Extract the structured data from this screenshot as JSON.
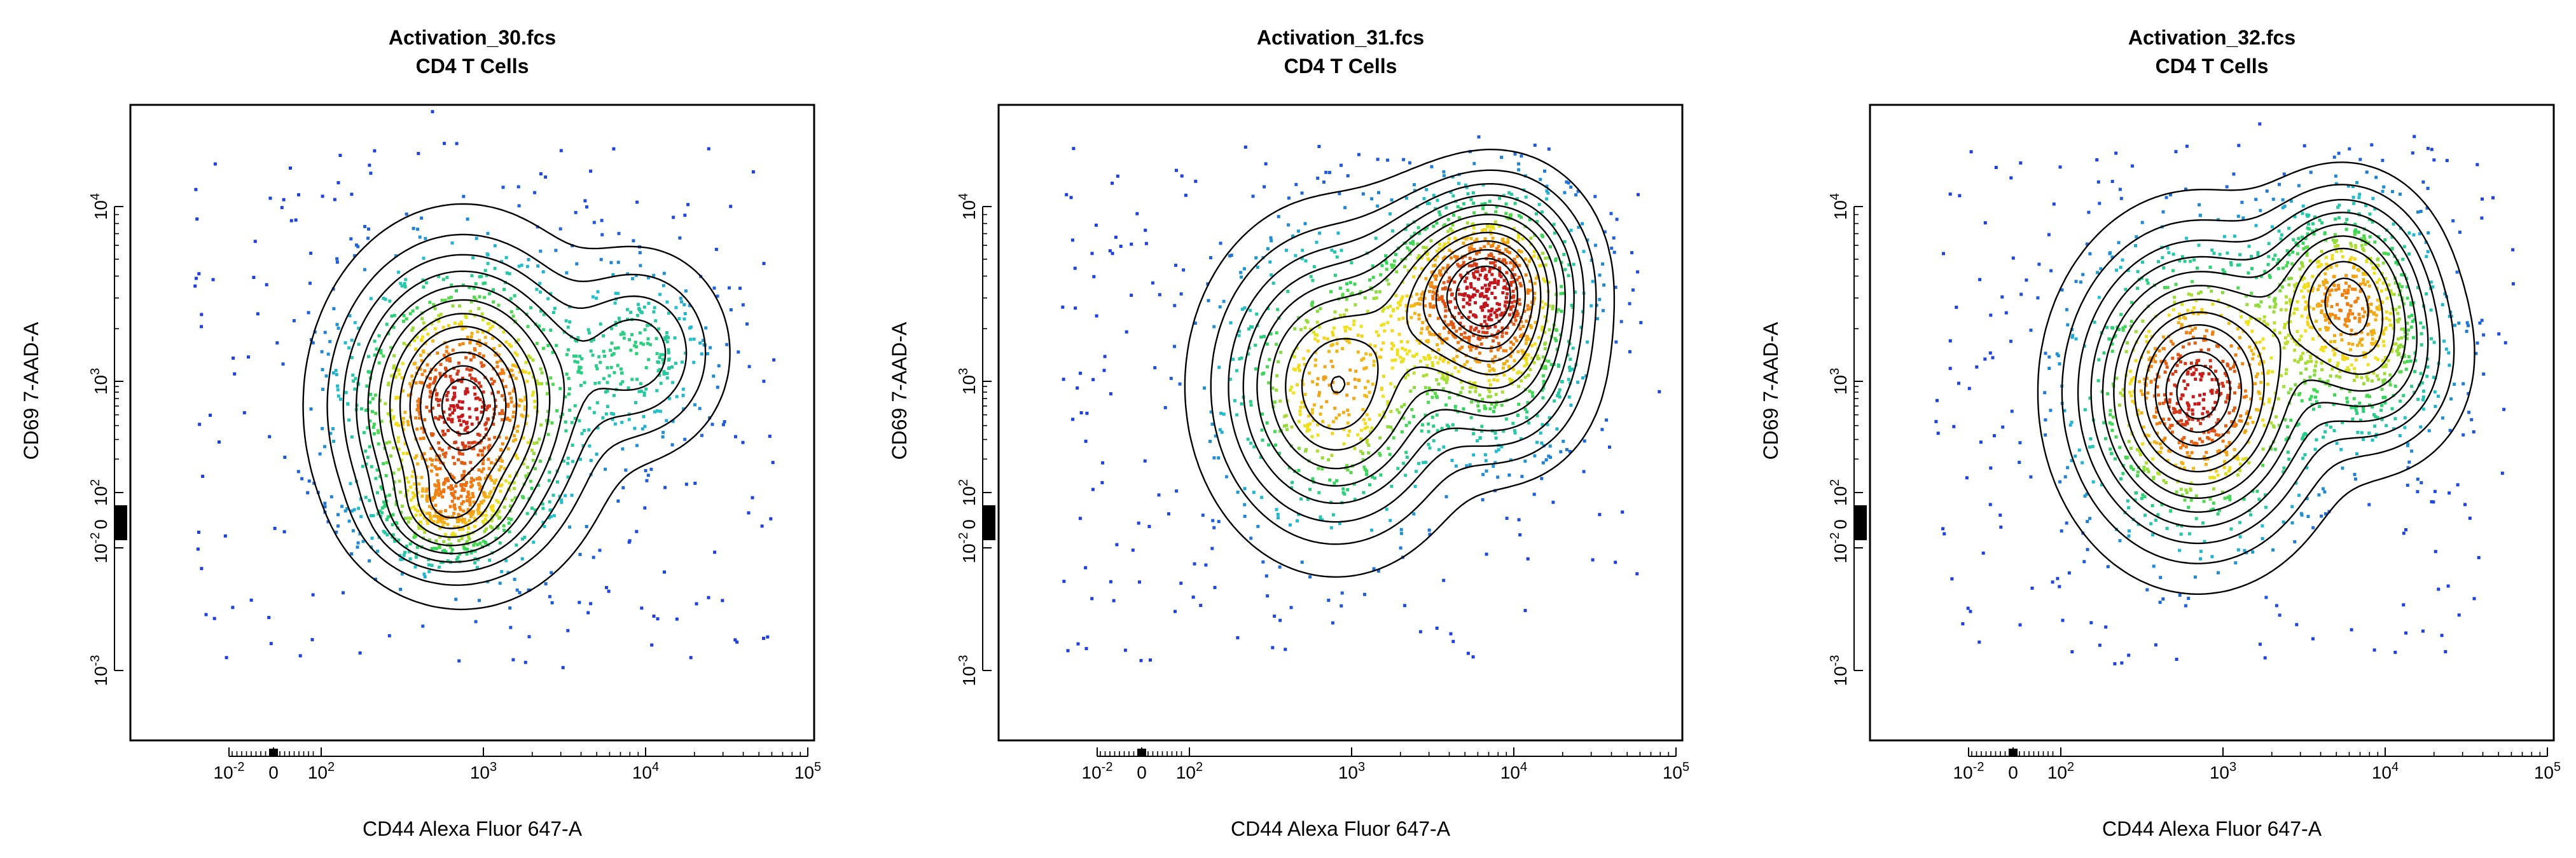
{
  "chart_data": [
    {
      "type": "scatter",
      "title": "Activation_30.fcs",
      "subtitle": "CD4 T Cells",
      "xlabel": "CD44 Alexa Fluor 647-A",
      "ylabel": "CD69 7-AAD-A",
      "x_tick_labels": [
        "10^-2",
        "0",
        "10^2",
        "10^3",
        "10^4",
        "10^5"
      ],
      "y_tick_labels": [
        "10^-3",
        "10^-2",
        "0",
        "10^2",
        "10^3",
        "10^4"
      ],
      "xlim": [
        -0.05,
        100000
      ],
      "ylim": [
        -0.005,
        40000
      ],
      "x_scale": "biexponential",
      "y_scale": "biexponential",
      "grid": false,
      "legend": "none",
      "overlay": "density contours",
      "populations": [
        {
          "x": 750,
          "y": 600,
          "weight": 1.0,
          "spread": "wide"
        },
        {
          "x": 600,
          "y": 30,
          "weight": 0.35,
          "spread": "narrow"
        },
        {
          "x": 9000,
          "y": 1800,
          "weight": 0.25,
          "spread": "medium"
        }
      ]
    },
    {
      "type": "scatter",
      "title": "Activation_31.fcs",
      "subtitle": "CD4 T Cells",
      "xlabel": "CD44 Alexa Fluor 647-A",
      "ylabel": "CD69 7-AAD-A",
      "x_tick_labels": [
        "10^-2",
        "0",
        "10^2",
        "10^3",
        "10^4",
        "10^5"
      ],
      "y_tick_labels": [
        "10^-3",
        "10^-2",
        "0",
        "10^2",
        "10^3",
        "10^4"
      ],
      "xlim": [
        -0.05,
        100000
      ],
      "ylim": [
        -0.005,
        40000
      ],
      "x_scale": "biexponential",
      "y_scale": "biexponential",
      "grid": false,
      "legend": "none",
      "overlay": "density contours",
      "populations": [
        {
          "x": 800,
          "y": 900,
          "weight": 0.9,
          "spread": "wide"
        },
        {
          "x": 8000,
          "y": 8000,
          "weight": 1.0,
          "spread": "medium"
        },
        {
          "x": 3500,
          "y": 6000,
          "weight": 0.5,
          "spread": "medium"
        },
        {
          "x": 8500,
          "y": 1300,
          "weight": 0.5,
          "spread": "medium"
        }
      ]
    },
    {
      "type": "scatter",
      "title": "Activation_32.fcs",
      "subtitle": "CD4 T Cells",
      "xlabel": "CD44 Alexa Fluor 647-A",
      "ylabel": "CD69 7-AAD-A",
      "x_tick_labels": [
        "10^-2",
        "0",
        "10^2",
        "10^3",
        "10^4",
        "10^5"
      ],
      "y_tick_labels": [
        "10^-3",
        "10^-2",
        "0",
        "10^2",
        "10^3",
        "10^4"
      ],
      "xlim": [
        -0.05,
        100000
      ],
      "ylim": [
        -0.005,
        40000
      ],
      "x_scale": "biexponential",
      "y_scale": "biexponential",
      "grid": false,
      "legend": "none",
      "overlay": "density contours",
      "populations": [
        {
          "x": 700,
          "y": 800,
          "weight": 1.0,
          "spread": "wide"
        },
        {
          "x": 5500,
          "y": 7000,
          "weight": 0.6,
          "spread": "medium"
        },
        {
          "x": 8500,
          "y": 1500,
          "weight": 0.35,
          "spread": "medium"
        }
      ]
    }
  ],
  "colors": {
    "density_low": "#1f3fe0",
    "density_mid_low": "#20c0d0",
    "density_mid": "#2ed65a",
    "density_mid_high": "#f3e21c",
    "density_high": "#f07a10",
    "density_peak": "#c4141b",
    "contour": "#000000",
    "frame": "#000000"
  }
}
